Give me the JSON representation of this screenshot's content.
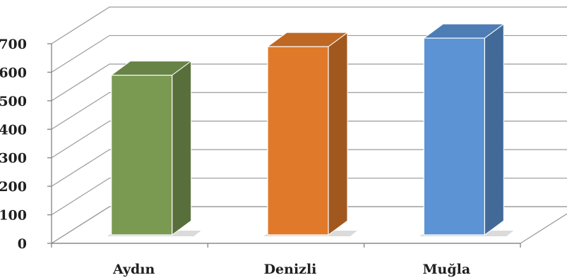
{
  "chart_data": {
    "type": "bar",
    "style": "3d-column",
    "categories": [
      "Aydın",
      "Denizli",
      "Muğla"
    ],
    "values": [
      560,
      660,
      690
    ],
    "ylim": [
      0,
      700
    ],
    "yticks": [
      "0",
      "100",
      "200",
      "300",
      "400",
      "500",
      "600",
      "700"
    ],
    "grid": true,
    "legend": "none",
    "colors": {
      "Aydın": "#7a9a52",
      "Denizli": "#e07a2a",
      "Muğla": "#5b93d4"
    }
  }
}
